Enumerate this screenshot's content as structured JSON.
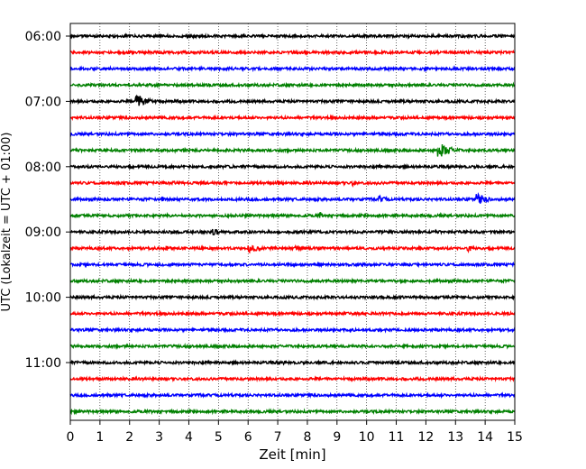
{
  "chart_data": {
    "type": "line",
    "title": "",
    "xlabel": "Zeit  [min]",
    "ylabel": "UTC (Lokalzeit = UTC + 01:00)",
    "xlim": [
      0,
      15
    ],
    "x_ticks": [
      "0",
      "1",
      "2",
      "3",
      "4",
      "5",
      "6",
      "7",
      "8",
      "9",
      "10",
      "11",
      "12",
      "13",
      "14",
      "15"
    ],
    "y_ticks": [
      "06:00",
      "07:00",
      "08:00",
      "09:00",
      "10:00",
      "11:00"
    ],
    "grid": "vertical dotted",
    "trace_interval_min": 15,
    "trace_colors": [
      "#000000",
      "#ff0000",
      "#0000ff",
      "#008000"
    ],
    "series": [
      {
        "start": "06:00",
        "color": "#000000",
        "events": []
      },
      {
        "start": "06:15",
        "color": "#ff0000",
        "events": []
      },
      {
        "start": "06:30",
        "color": "#0000ff",
        "events": []
      },
      {
        "start": "06:45",
        "color": "#008000",
        "events": []
      },
      {
        "start": "07:00",
        "color": "#000000",
        "events": [
          {
            "t": 2.2,
            "amp": 1.0,
            "dur": 1.3
          },
          {
            "t": 12.8,
            "amp": 0.25,
            "dur": 0.2
          }
        ]
      },
      {
        "start": "07:15",
        "color": "#ff0000",
        "events": [
          {
            "t": 10.0,
            "amp": 0.2,
            "dur": 0.2
          }
        ]
      },
      {
        "start": "07:30",
        "color": "#0000ff",
        "events": []
      },
      {
        "start": "07:45",
        "color": "#008000",
        "events": [
          {
            "t": 12.4,
            "amp": 1.1,
            "dur": 1.2
          }
        ]
      },
      {
        "start": "08:00",
        "color": "#000000",
        "events": [
          {
            "t": 11.3,
            "amp": 0.2,
            "dur": 0.6
          },
          {
            "t": 4.6,
            "amp": 0.15,
            "dur": 0.2
          }
        ]
      },
      {
        "start": "08:15",
        "color": "#ff0000",
        "events": [
          {
            "t": 3.5,
            "amp": 0.25,
            "dur": 0.6
          },
          {
            "t": 5.2,
            "amp": 0.4,
            "dur": 0.5
          },
          {
            "t": 7.0,
            "amp": 0.35,
            "dur": 0.8
          },
          {
            "t": 8.0,
            "amp": 0.3,
            "dur": 0.7
          },
          {
            "t": 9.5,
            "amp": 0.45,
            "dur": 0.6
          },
          {
            "t": 10.3,
            "amp": 0.3,
            "dur": 0.4
          }
        ]
      },
      {
        "start": "08:30",
        "color": "#0000ff",
        "events": [
          {
            "t": 3.1,
            "amp": 0.4,
            "dur": 0.3
          },
          {
            "t": 10.4,
            "amp": 0.5,
            "dur": 1.0
          },
          {
            "t": 13.7,
            "amp": 0.8,
            "dur": 1.0
          }
        ]
      },
      {
        "start": "08:45",
        "color": "#008000",
        "events": [
          {
            "t": 8.4,
            "amp": 0.6,
            "dur": 0.3
          }
        ]
      },
      {
        "start": "09:00",
        "color": "#000000",
        "events": [
          {
            "t": 4.8,
            "amp": 0.6,
            "dur": 0.7
          },
          {
            "t": 10.8,
            "amp": 0.3,
            "dur": 0.5
          }
        ]
      },
      {
        "start": "09:15",
        "color": "#ff0000",
        "events": [
          {
            "t": 3.2,
            "amp": 0.35,
            "dur": 1.0
          },
          {
            "t": 6.0,
            "amp": 0.6,
            "dur": 1.1
          },
          {
            "t": 7.6,
            "amp": 0.35,
            "dur": 0.8
          },
          {
            "t": 13.4,
            "amp": 0.5,
            "dur": 0.7
          }
        ]
      },
      {
        "start": "09:30",
        "color": "#0000ff",
        "events": [
          {
            "t": 5.9,
            "amp": 0.15,
            "dur": 0.2
          }
        ]
      },
      {
        "start": "09:45",
        "color": "#008000",
        "events": []
      },
      {
        "start": "10:00",
        "color": "#000000",
        "events": []
      },
      {
        "start": "10:15",
        "color": "#ff0000",
        "events": []
      },
      {
        "start": "10:30",
        "color": "#0000ff",
        "events": []
      },
      {
        "start": "10:45",
        "color": "#008000",
        "events": []
      },
      {
        "start": "11:00",
        "color": "#000000",
        "events": [
          {
            "t": 7.2,
            "amp": 0.25,
            "dur": 0.5
          }
        ]
      },
      {
        "start": "11:15",
        "color": "#ff0000",
        "events": []
      },
      {
        "start": "11:30",
        "color": "#0000ff",
        "events": [
          {
            "t": 1.7,
            "amp": 0.15,
            "dur": 0.2
          },
          {
            "t": 9.5,
            "amp": 0.15,
            "dur": 0.2
          }
        ]
      },
      {
        "start": "11:45",
        "color": "#008000",
        "events": []
      }
    ]
  }
}
